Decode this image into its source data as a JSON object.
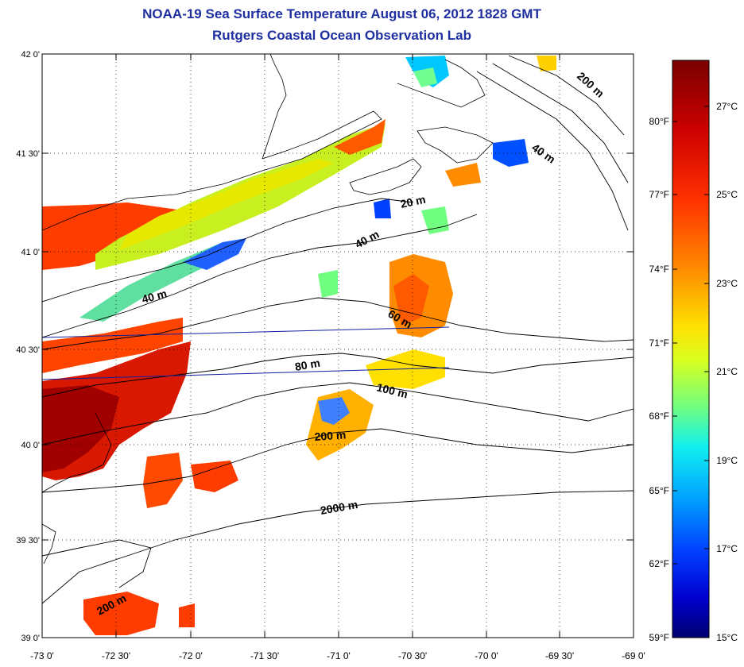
{
  "title": "NOAA-19 Sea Surface Temperature August 06, 2012 1828 GMT",
  "subtitle": "Rutgers Coastal Ocean Observation Lab",
  "lat_labels": [
    "42 0'",
    "41 30'",
    "41 0'",
    "40 30'",
    "40 0'",
    "39 30'",
    "39 0'"
  ],
  "lon_labels": [
    "-73 0'",
    "-72 30'",
    "-72 0'",
    "-71 30'",
    "-71 0'",
    "-70 30'",
    "-70 0'",
    "-69 30'",
    "-69 0'"
  ],
  "contour_labels": [
    "20 m",
    "40 m",
    "40 m",
    "40 m",
    "60 m",
    "80 m",
    "100 m",
    "200 m",
    "200 m",
    "200 m",
    "2000 m"
  ],
  "colorbar": {
    "fahrenheit": [
      "80°F",
      "77°F",
      "74°F",
      "71°F",
      "68°F",
      "65°F",
      "62°F",
      "59°F"
    ],
    "celsius": [
      "27°C",
      "25°C",
      "23°C",
      "21°C",
      "19°C",
      "17°C",
      "15°C"
    ],
    "colors": [
      "#7a0000",
      "#d40000",
      "#ff3c00",
      "#ff8c00",
      "#ffd700",
      "#e6ff1a",
      "#7dff7d",
      "#1affe6",
      "#00a0ff",
      "#0040ff",
      "#0000c8",
      "#000080"
    ]
  }
}
